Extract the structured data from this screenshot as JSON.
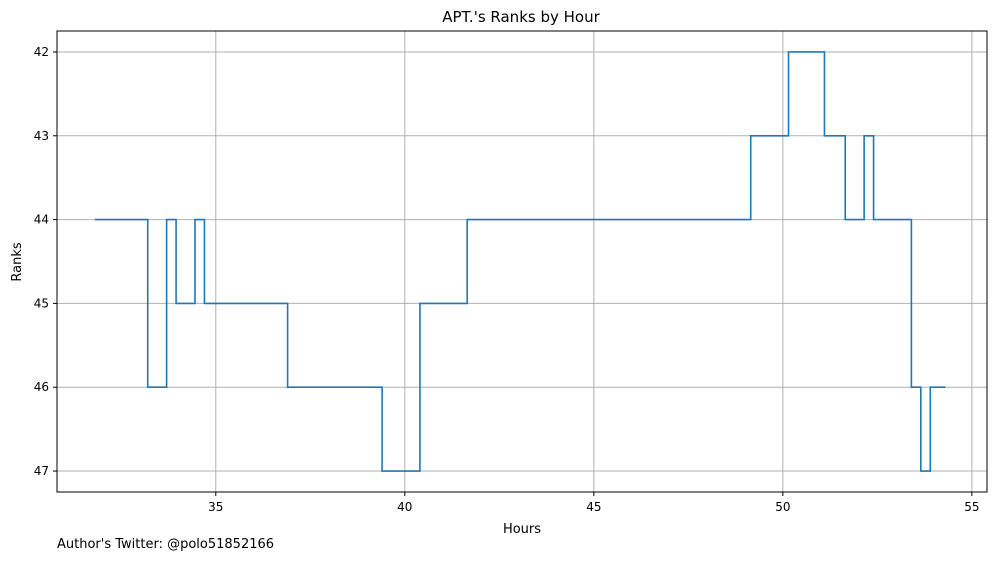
{
  "chart_data": {
    "type": "line",
    "step": "post",
    "title": "APT.'s Ranks by Hour",
    "xlabel": "Hours",
    "ylabel": "Ranks",
    "xlim": [
      30.8,
      55.4
    ],
    "ylim": [
      47.25,
      41.75
    ],
    "y_inverted": true,
    "x_ticks": [
      35,
      40,
      45,
      50,
      55
    ],
    "y_ticks": [
      42,
      43,
      44,
      45,
      46,
      47
    ],
    "grid": true,
    "line_color": "#1f77b4",
    "series": [
      {
        "x": [
          31.8,
          33.2,
          33.7,
          33.95,
          34.45,
          34.7,
          36.9,
          39.4,
          40.4,
          41.65,
          49.15,
          50.15,
          51.1,
          51.65,
          52.15,
          52.4,
          53.4,
          53.65,
          53.9,
          54.3
        ],
        "y": [
          44,
          46,
          44,
          45,
          44,
          45,
          46,
          47,
          45,
          44,
          43,
          42,
          43,
          44,
          43,
          44,
          46,
          47,
          46,
          46
        ]
      }
    ]
  },
  "footer": {
    "note": "Author's Twitter: @polo51852166"
  }
}
